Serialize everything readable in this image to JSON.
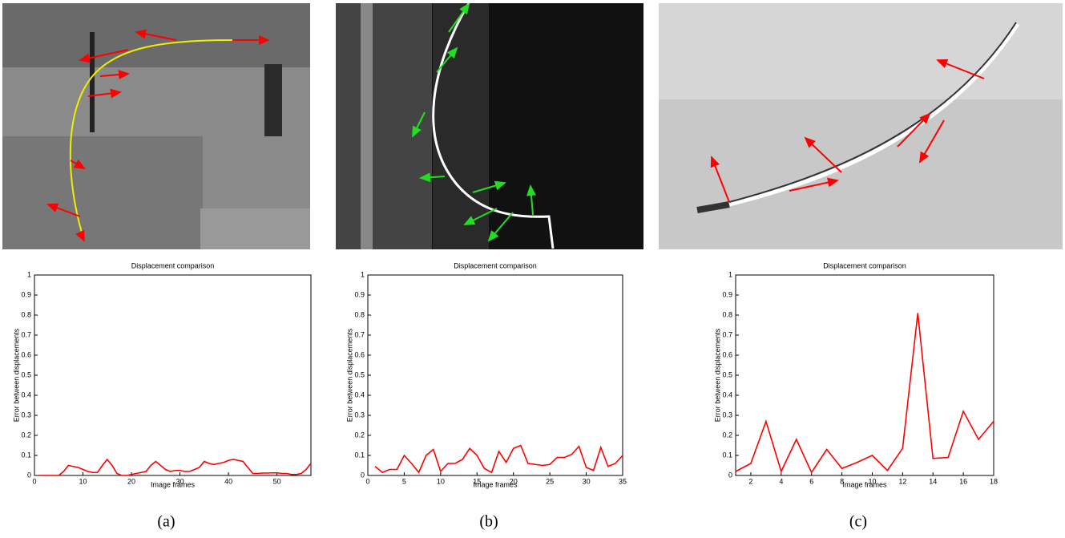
{
  "chart_data": [
    {
      "type": "line",
      "title": "Displacement comparison",
      "x_label": "Image frames",
      "y_label": "Error between displacements",
      "caption": "(a)",
      "color": "#ff0000",
      "x": [
        1,
        2,
        3,
        4,
        5,
        6,
        7,
        8,
        9,
        10,
        11,
        12,
        13,
        14,
        15,
        16,
        17,
        18,
        19,
        20,
        21,
        22,
        23,
        24,
        25,
        26,
        27,
        28,
        29,
        30,
        31,
        32,
        33,
        34,
        35,
        36,
        37,
        38,
        39,
        40,
        41,
        42,
        43,
        44,
        45,
        46,
        47,
        48,
        49,
        50,
        51,
        52,
        53,
        54,
        55,
        56,
        57
      ],
      "values": [
        0,
        0,
        0,
        0,
        0,
        0.02,
        0.05,
        0.045,
        0.04,
        0.03,
        0.02,
        0.015,
        0.015,
        0.05,
        0.08,
        0.05,
        0.01,
        0,
        0,
        0.005,
        0.01,
        0.015,
        0.02,
        0.05,
        0.07,
        0.05,
        0.03,
        0.02,
        0.025,
        0.025,
        0.02,
        0.02,
        0.03,
        0.04,
        0.07,
        0.06,
        0.055,
        0.06,
        0.065,
        0.075,
        0.08,
        0.075,
        0.07,
        0.04,
        0.01,
        0.01,
        0.012,
        0.012,
        0.013,
        0.013,
        0.01,
        0.01,
        0.005,
        0.005,
        0.01,
        0.03,
        0.06
      ],
      "xlim": [
        0,
        57
      ],
      "xticks": [
        0,
        10,
        20,
        30,
        40,
        50
      ],
      "ylim": [
        0,
        1
      ],
      "yticks": [
        0,
        0.1,
        0.2,
        0.3,
        0.4,
        0.5,
        0.6,
        0.7,
        0.8,
        0.9,
        1
      ]
    },
    {
      "type": "line",
      "title": "Displacement comparison",
      "x_label": "Image frames",
      "y_label": "Error between displacements",
      "caption": "(b)",
      "color": "#ff0000",
      "x": [
        1,
        2,
        3,
        4,
        5,
        6,
        7,
        8,
        9,
        10,
        11,
        12,
        13,
        14,
        15,
        16,
        17,
        18,
        19,
        20,
        21,
        22,
        23,
        24,
        25,
        26,
        27,
        28,
        29,
        30,
        31,
        32,
        33,
        34,
        35
      ],
      "values": [
        0.045,
        0.015,
        0.03,
        0.03,
        0.1,
        0.06,
        0.015,
        0.1,
        0.13,
        0.02,
        0.06,
        0.06,
        0.08,
        0.135,
        0.1,
        0.035,
        0.015,
        0.12,
        0.065,
        0.135,
        0.15,
        0.06,
        0.055,
        0.05,
        0.055,
        0.09,
        0.09,
        0.105,
        0.145,
        0.04,
        0.025,
        0.14,
        0.045,
        0.06,
        0.1
      ],
      "xlim": [
        0,
        35
      ],
      "xticks": [
        0,
        5,
        10,
        15,
        20,
        25,
        30,
        35
      ],
      "ylim": [
        0,
        1
      ],
      "yticks": [
        0,
        0.1,
        0.2,
        0.3,
        0.4,
        0.5,
        0.6,
        0.7,
        0.8,
        0.9,
        1
      ]
    },
    {
      "type": "line",
      "title": "Displacement comparison",
      "x_label": "Image frames",
      "y_label": "Error between displacements",
      "caption": "(c)",
      "color": "#ff0000",
      "x": [
        1,
        2,
        3,
        4,
        5,
        6,
        7,
        8,
        9,
        10,
        11,
        12,
        13,
        14,
        15,
        16,
        17,
        18
      ],
      "values": [
        0.02,
        0.06,
        0.27,
        0.02,
        0.18,
        0.015,
        0.13,
        0.035,
        0.065,
        0.1,
        0.025,
        0.135,
        0.81,
        0.085,
        0.09,
        0.32,
        0.18,
        0.27
      ],
      "xlim": [
        1,
        18
      ],
      "xticks": [
        2,
        4,
        6,
        8,
        10,
        12,
        14,
        16,
        18
      ],
      "ylim": [
        0,
        1
      ],
      "yticks": [
        0,
        0.1,
        0.2,
        0.3,
        0.4,
        0.5,
        0.6,
        0.7,
        0.8,
        0.9,
        1
      ]
    }
  ]
}
